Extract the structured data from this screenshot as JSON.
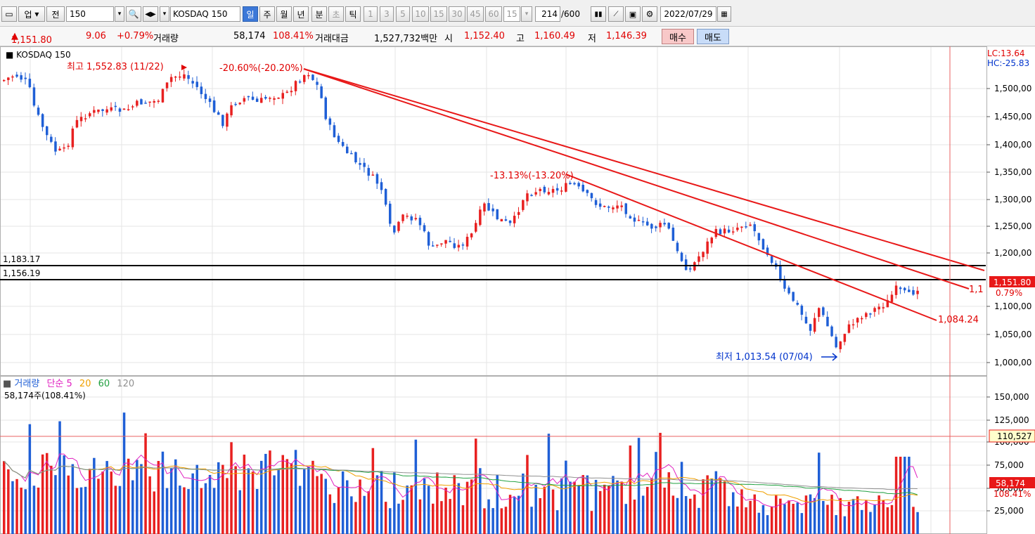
{
  "toolbar": {
    "market": "업",
    "prev": "전",
    "code": "150",
    "name": "KOSDAQ 150",
    "periods": [
      "일",
      "주",
      "월",
      "년",
      "분",
      "초",
      "틱"
    ],
    "active_period": "일",
    "minutes": [
      "1",
      "3",
      "5",
      "10",
      "15",
      "30",
      "45",
      "60"
    ],
    "interval": "15",
    "count_value": "214",
    "count_total": "/600",
    "date": "2022/07/29"
  },
  "quote": {
    "price": "1,151.80",
    "change": "9.06",
    "change_pct": "+0.79%",
    "volume_label": "거래량",
    "volume": "58,174",
    "volume_pct": "108.41%",
    "amount_label": "거래대금",
    "amount": "1,527,732백만",
    "open_label": "시",
    "open": "1,152.40",
    "high_label": "고",
    "high": "1,160.49",
    "low_label": "저",
    "low": "1,146.39",
    "buy": "매수",
    "sell": "매도"
  },
  "price_panel": {
    "title": "KOSDAQ 150",
    "lc": "LC:13.64",
    "hc": "HC:-25.83",
    "hline1": "1,183.17",
    "hline2": "1,156.19",
    "high_note": "최고 1,552.83 (11/22)",
    "drop1": "-20.60%(-20.20%)",
    "drop2": "-13.13%(-13.20%)",
    "low_note": "최저 1,013.54 (07/04)",
    "trend_end1": "1,084.24",
    "trend_end2": "1,1",
    "last_price": "1,151.80",
    "last_pct": "0.79%",
    "axis": [
      "1,500,00",
      "1,450,00",
      "1,400,00",
      "1,350,00",
      "1,300,00",
      "1,250,00",
      "1,200,00",
      "1,100,00",
      "1,050,00",
      "1,000,00"
    ]
  },
  "volume_panel": {
    "title": "거래량",
    "ma_label": "단순 5",
    "ma20": "20",
    "ma60": "60",
    "ma120": "120",
    "current": "58,174주(108.41%)",
    "axis": [
      "150,000",
      "125,000",
      "100,000",
      "75,000",
      "50,000",
      "25,000"
    ],
    "cursor_value": "110,527",
    "last_value": "58,174",
    "last_pct": "108.41%"
  },
  "colors": {
    "up": "#e82020",
    "down": "#1f5fd6",
    "ma5": "#e020c0",
    "ma20": "#f0a000",
    "ma60": "#20a040",
    "ma120": "#909090"
  }
}
